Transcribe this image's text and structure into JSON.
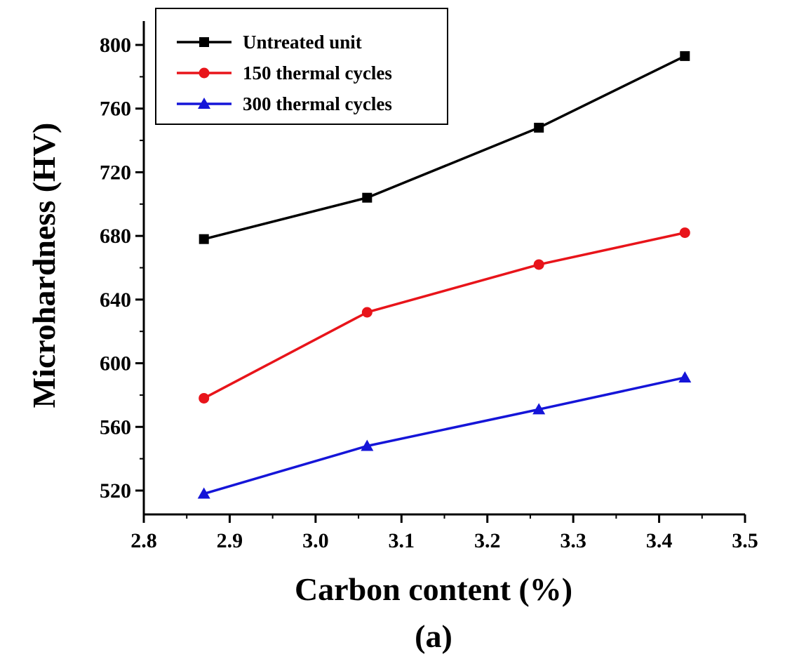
{
  "chart_data": {
    "type": "line",
    "title": "",
    "caption": "(a)",
    "xlabel": "Carbon content (%)",
    "ylabel": "Microhardness (HV)",
    "xlim": [
      2.8,
      3.5
    ],
    "ylim": [
      505,
      815
    ],
    "xticks": [
      "2.8",
      "2.9",
      "3.0",
      "3.1",
      "3.2",
      "3.3",
      "3.4",
      "3.5"
    ],
    "yticks": [
      "520",
      "560",
      "600",
      "640",
      "680",
      "720",
      "760",
      "800"
    ],
    "grid": false,
    "legend_position": "top-left",
    "x": [
      2.87,
      3.06,
      3.26,
      3.43
    ],
    "series": [
      {
        "name": "Untreated unit",
        "color": "#000000",
        "marker": "square",
        "values": [
          678,
          704,
          748,
          793
        ]
      },
      {
        "name": "150 thermal cycles",
        "color": "#e8141a",
        "marker": "circle",
        "values": [
          578,
          632,
          662,
          682
        ]
      },
      {
        "name": "300 thermal cycles",
        "color": "#1515d8",
        "marker": "triangle",
        "values": [
          518,
          548,
          571,
          591
        ]
      }
    ]
  }
}
